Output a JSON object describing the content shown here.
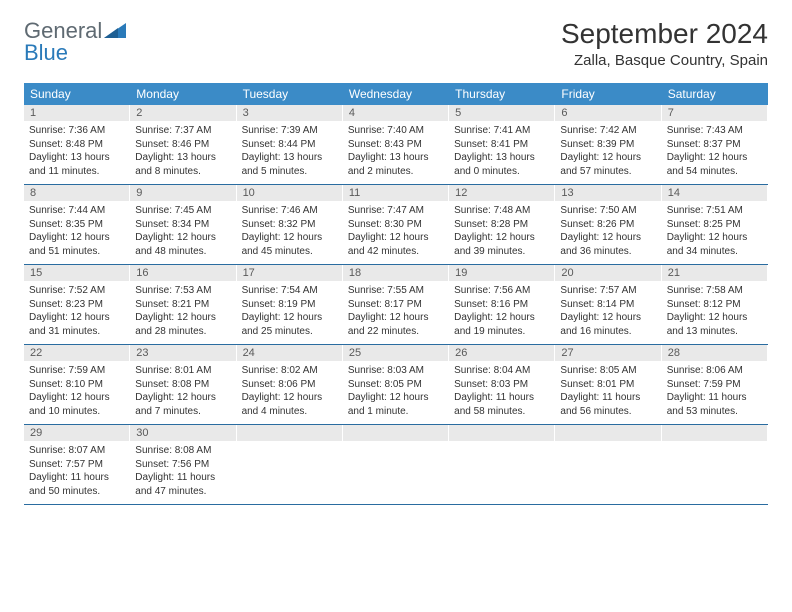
{
  "logo": {
    "word1": "General",
    "word2": "Blue"
  },
  "title": "September 2024",
  "location": "Zalla, Basque Country, Spain",
  "weekdays": [
    "Sunday",
    "Monday",
    "Tuesday",
    "Wednesday",
    "Thursday",
    "Friday",
    "Saturday"
  ],
  "colors": {
    "header_bg": "#3b8bc7",
    "header_text": "#ffffff",
    "daynum_bg": "#e9e9e9",
    "week_border": "#2a6ca0",
    "logo_gray": "#5f6a72",
    "logo_blue": "#2a7ab9"
  },
  "weeks": [
    [
      {
        "n": "1",
        "sunrise": "Sunrise: 7:36 AM",
        "sunset": "Sunset: 8:48 PM",
        "day1": "Daylight: 13 hours",
        "day2": "and 11 minutes."
      },
      {
        "n": "2",
        "sunrise": "Sunrise: 7:37 AM",
        "sunset": "Sunset: 8:46 PM",
        "day1": "Daylight: 13 hours",
        "day2": "and 8 minutes."
      },
      {
        "n": "3",
        "sunrise": "Sunrise: 7:39 AM",
        "sunset": "Sunset: 8:44 PM",
        "day1": "Daylight: 13 hours",
        "day2": "and 5 minutes."
      },
      {
        "n": "4",
        "sunrise": "Sunrise: 7:40 AM",
        "sunset": "Sunset: 8:43 PM",
        "day1": "Daylight: 13 hours",
        "day2": "and 2 minutes."
      },
      {
        "n": "5",
        "sunrise": "Sunrise: 7:41 AM",
        "sunset": "Sunset: 8:41 PM",
        "day1": "Daylight: 13 hours",
        "day2": "and 0 minutes."
      },
      {
        "n": "6",
        "sunrise": "Sunrise: 7:42 AM",
        "sunset": "Sunset: 8:39 PM",
        "day1": "Daylight: 12 hours",
        "day2": "and 57 minutes."
      },
      {
        "n": "7",
        "sunrise": "Sunrise: 7:43 AM",
        "sunset": "Sunset: 8:37 PM",
        "day1": "Daylight: 12 hours",
        "day2": "and 54 minutes."
      }
    ],
    [
      {
        "n": "8",
        "sunrise": "Sunrise: 7:44 AM",
        "sunset": "Sunset: 8:35 PM",
        "day1": "Daylight: 12 hours",
        "day2": "and 51 minutes."
      },
      {
        "n": "9",
        "sunrise": "Sunrise: 7:45 AM",
        "sunset": "Sunset: 8:34 PM",
        "day1": "Daylight: 12 hours",
        "day2": "and 48 minutes."
      },
      {
        "n": "10",
        "sunrise": "Sunrise: 7:46 AM",
        "sunset": "Sunset: 8:32 PM",
        "day1": "Daylight: 12 hours",
        "day2": "and 45 minutes."
      },
      {
        "n": "11",
        "sunrise": "Sunrise: 7:47 AM",
        "sunset": "Sunset: 8:30 PM",
        "day1": "Daylight: 12 hours",
        "day2": "and 42 minutes."
      },
      {
        "n": "12",
        "sunrise": "Sunrise: 7:48 AM",
        "sunset": "Sunset: 8:28 PM",
        "day1": "Daylight: 12 hours",
        "day2": "and 39 minutes."
      },
      {
        "n": "13",
        "sunrise": "Sunrise: 7:50 AM",
        "sunset": "Sunset: 8:26 PM",
        "day1": "Daylight: 12 hours",
        "day2": "and 36 minutes."
      },
      {
        "n": "14",
        "sunrise": "Sunrise: 7:51 AM",
        "sunset": "Sunset: 8:25 PM",
        "day1": "Daylight: 12 hours",
        "day2": "and 34 minutes."
      }
    ],
    [
      {
        "n": "15",
        "sunrise": "Sunrise: 7:52 AM",
        "sunset": "Sunset: 8:23 PM",
        "day1": "Daylight: 12 hours",
        "day2": "and 31 minutes."
      },
      {
        "n": "16",
        "sunrise": "Sunrise: 7:53 AM",
        "sunset": "Sunset: 8:21 PM",
        "day1": "Daylight: 12 hours",
        "day2": "and 28 minutes."
      },
      {
        "n": "17",
        "sunrise": "Sunrise: 7:54 AM",
        "sunset": "Sunset: 8:19 PM",
        "day1": "Daylight: 12 hours",
        "day2": "and 25 minutes."
      },
      {
        "n": "18",
        "sunrise": "Sunrise: 7:55 AM",
        "sunset": "Sunset: 8:17 PM",
        "day1": "Daylight: 12 hours",
        "day2": "and 22 minutes."
      },
      {
        "n": "19",
        "sunrise": "Sunrise: 7:56 AM",
        "sunset": "Sunset: 8:16 PM",
        "day1": "Daylight: 12 hours",
        "day2": "and 19 minutes."
      },
      {
        "n": "20",
        "sunrise": "Sunrise: 7:57 AM",
        "sunset": "Sunset: 8:14 PM",
        "day1": "Daylight: 12 hours",
        "day2": "and 16 minutes."
      },
      {
        "n": "21",
        "sunrise": "Sunrise: 7:58 AM",
        "sunset": "Sunset: 8:12 PM",
        "day1": "Daylight: 12 hours",
        "day2": "and 13 minutes."
      }
    ],
    [
      {
        "n": "22",
        "sunrise": "Sunrise: 7:59 AM",
        "sunset": "Sunset: 8:10 PM",
        "day1": "Daylight: 12 hours",
        "day2": "and 10 minutes."
      },
      {
        "n": "23",
        "sunrise": "Sunrise: 8:01 AM",
        "sunset": "Sunset: 8:08 PM",
        "day1": "Daylight: 12 hours",
        "day2": "and 7 minutes."
      },
      {
        "n": "24",
        "sunrise": "Sunrise: 8:02 AM",
        "sunset": "Sunset: 8:06 PM",
        "day1": "Daylight: 12 hours",
        "day2": "and 4 minutes."
      },
      {
        "n": "25",
        "sunrise": "Sunrise: 8:03 AM",
        "sunset": "Sunset: 8:05 PM",
        "day1": "Daylight: 12 hours",
        "day2": "and 1 minute."
      },
      {
        "n": "26",
        "sunrise": "Sunrise: 8:04 AM",
        "sunset": "Sunset: 8:03 PM",
        "day1": "Daylight: 11 hours",
        "day2": "and 58 minutes."
      },
      {
        "n": "27",
        "sunrise": "Sunrise: 8:05 AM",
        "sunset": "Sunset: 8:01 PM",
        "day1": "Daylight: 11 hours",
        "day2": "and 56 minutes."
      },
      {
        "n": "28",
        "sunrise": "Sunrise: 8:06 AM",
        "sunset": "Sunset: 7:59 PM",
        "day1": "Daylight: 11 hours",
        "day2": "and 53 minutes."
      }
    ],
    [
      {
        "n": "29",
        "sunrise": "Sunrise: 8:07 AM",
        "sunset": "Sunset: 7:57 PM",
        "day1": "Daylight: 11 hours",
        "day2": "and 50 minutes."
      },
      {
        "n": "30",
        "sunrise": "Sunrise: 8:08 AM",
        "sunset": "Sunset: 7:56 PM",
        "day1": "Daylight: 11 hours",
        "day2": "and 47 minutes."
      },
      {
        "empty": true
      },
      {
        "empty": true
      },
      {
        "empty": true
      },
      {
        "empty": true
      },
      {
        "empty": true
      }
    ]
  ]
}
